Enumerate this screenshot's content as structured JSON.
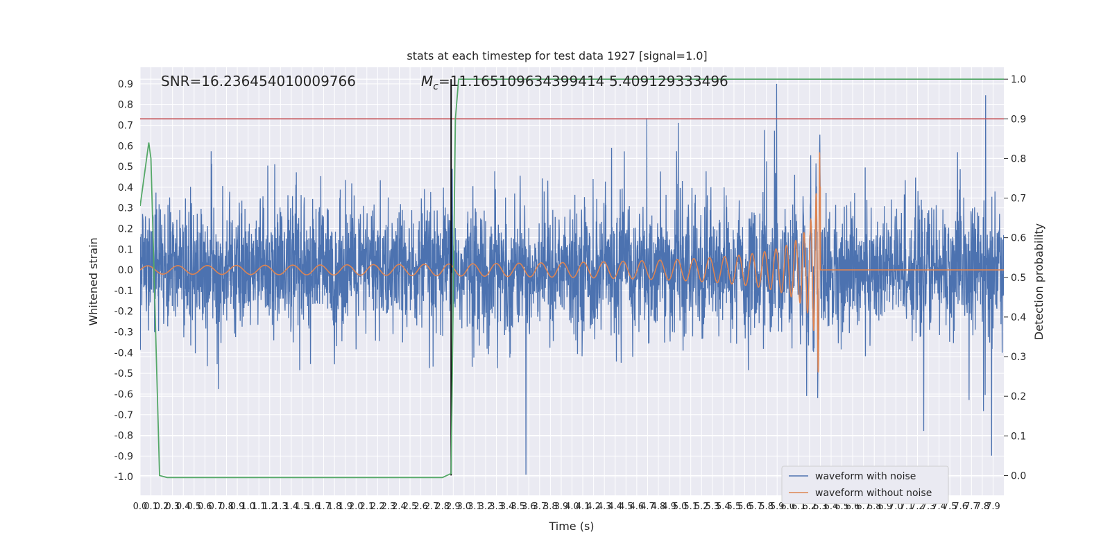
{
  "chart_data": {
    "type": "line",
    "title": "stats at each timestep for test data 1927 [signal=1.0]",
    "xlabel": "Time (s)",
    "ylabel": "Whitened strain",
    "y2label": "Detection probability",
    "xlim": [
      0.0,
      8.0
    ],
    "ylim": [
      -1.09,
      0.98
    ],
    "y2lim": [
      -0.05,
      1.03
    ],
    "grid": true,
    "legend_position": "lower-right",
    "x_ticks": [
      0.0,
      0.1,
      0.2,
      0.3,
      0.4,
      0.5,
      0.6,
      0.7,
      0.8,
      0.9,
      1.0,
      1.1,
      1.2,
      1.3,
      1.4,
      1.5,
      1.6,
      1.7,
      1.8,
      1.9,
      2.0,
      2.1,
      2.2,
      2.3,
      2.4,
      2.5,
      2.6,
      2.7,
      2.8,
      2.9,
      3.0,
      3.1,
      3.2,
      3.3,
      3.4,
      3.5,
      3.6,
      3.7,
      3.8,
      3.9,
      4.0,
      4.1,
      4.2,
      4.3,
      4.4,
      4.5,
      4.6,
      4.7,
      4.8,
      4.9,
      5.0,
      5.1,
      5.2,
      5.3,
      5.4,
      5.5,
      5.6,
      5.7,
      5.8,
      5.9,
      6.0,
      6.1,
      6.2,
      6.3,
      6.4,
      6.5,
      6.6,
      6.7,
      6.8,
      6.9,
      7.0,
      7.1,
      7.2,
      7.3,
      7.4,
      7.5,
      7.6,
      7.7,
      7.8,
      7.9
    ],
    "y_ticks": [
      0.9,
      0.8,
      0.7,
      0.6,
      0.5,
      0.4,
      0.3,
      0.2,
      0.1,
      0.0,
      -0.1,
      -0.2,
      -0.3,
      -0.4,
      -0.5,
      -0.6,
      -0.7,
      -0.8,
      -0.9,
      -1.0
    ],
    "y2_ticks": [
      1.0,
      0.9,
      0.8,
      0.7,
      0.6,
      0.5,
      0.4,
      0.3,
      0.2,
      0.1,
      0.0
    ],
    "annotations": {
      "snr": "SNR=16.236454010009766",
      "mc_prefix": "M",
      "mc_sub": "c",
      "mc_value": "=11.165109634399414",
      "overlap": "5.409129333496"
    },
    "series": [
      {
        "name": "waveform with noise",
        "color": "#4c72b0",
        "axis": "left",
        "description": "noisy whitened strain, envelope approx +/-0.35 with spikes to +/-0.9"
      },
      {
        "name": "waveform without noise",
        "color": "#dd8452",
        "axis": "left",
        "chirp_start": 0.0,
        "merger_time": 6.3,
        "peak_amplitude": 0.57,
        "initial_amplitude": 0.02
      },
      {
        "name": "detection probability",
        "color": "#55a868",
        "axis": "right",
        "x": [
          0.0,
          0.05,
          0.08,
          0.1,
          0.13,
          0.18,
          0.25,
          2.8,
          2.88,
          2.92,
          2.95,
          8.0
        ],
        "y": [
          0.68,
          0.78,
          0.84,
          0.8,
          0.5,
          0.0,
          -0.005,
          -0.005,
          0.005,
          0.9,
          1.0,
          1.0
        ]
      }
    ],
    "threshold": {
      "axis": "right",
      "value": 0.9,
      "color": "#c44e52"
    },
    "marker_line": {
      "x": 2.88,
      "color": "#000000"
    },
    "legend": [
      "waveform with noise",
      "waveform without noise"
    ]
  }
}
